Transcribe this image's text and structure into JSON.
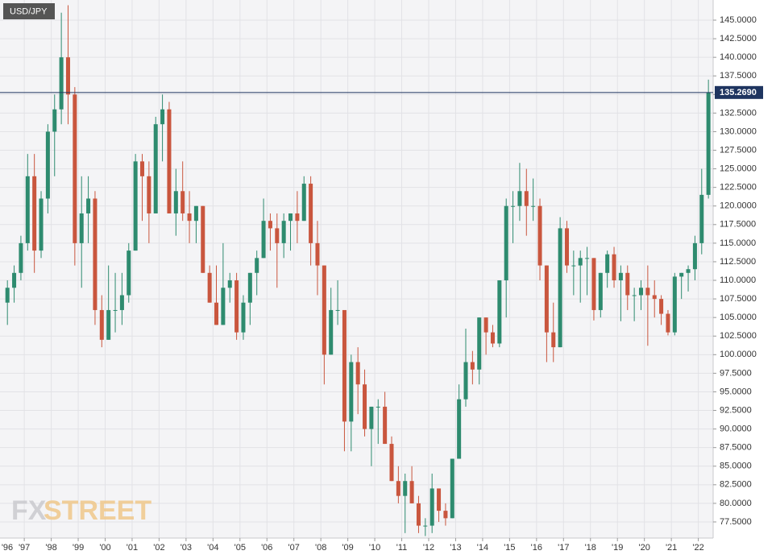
{
  "chart_data": {
    "type": "candlestick",
    "title": "USD/JPY",
    "watermark": {
      "prefix": "FX",
      "suffix": "STREET"
    },
    "up_color": "#2e8b6f",
    "down_color": "#c9563e",
    "grid": true,
    "x": [
      1996.375,
      1996.625,
      1996.875,
      1997.125,
      1997.375,
      1997.625,
      1997.875,
      1998.125,
      1998.375,
      1998.625,
      1998.875,
      1999.125,
      1999.375,
      1999.625,
      1999.875,
      2000.125,
      2000.375,
      2000.625,
      2000.875,
      2001.125,
      2001.375,
      2001.625,
      2001.875,
      2002.125,
      2002.375,
      2002.625,
      2002.875,
      2003.125,
      2003.375,
      2003.625,
      2003.875,
      2004.125,
      2004.375,
      2004.625,
      2004.875,
      2005.125,
      2005.375,
      2005.625,
      2005.875,
      2006.125,
      2006.375,
      2006.625,
      2006.875,
      2007.125,
      2007.375,
      2007.625,
      2007.875,
      2008.125,
      2008.375,
      2008.625,
      2008.875,
      2009.125,
      2009.375,
      2009.625,
      2009.875,
      2010.125,
      2010.375,
      2010.625,
      2010.875,
      2011.125,
      2011.375,
      2011.625,
      2011.875,
      2012.125,
      2012.375,
      2012.625,
      2012.875,
      2013.125,
      2013.375,
      2013.625,
      2013.875,
      2014.125,
      2014.375,
      2014.625,
      2014.875,
      2015.125,
      2015.375,
      2015.625,
      2015.875,
      2016.125,
      2016.375,
      2016.625,
      2016.875,
      2017.125,
      2017.375,
      2017.625,
      2017.875,
      2018.125,
      2018.375,
      2018.625,
      2018.875,
      2019.125,
      2019.375,
      2019.625,
      2019.875,
      2020.125,
      2020.375,
      2020.625,
      2020.875,
      2021.125,
      2021.375,
      2021.625,
      2021.875,
      2022.125,
      2022.375
    ],
    "open": [
      107,
      109,
      111,
      115,
      124,
      114,
      121,
      130,
      133,
      140,
      135,
      115,
      119,
      121,
      106,
      102,
      106,
      106,
      108,
      114,
      126,
      124,
      119,
      131,
      133,
      119,
      122,
      119,
      118,
      120,
      111,
      107,
      104,
      109,
      110,
      103,
      107,
      111,
      113,
      118,
      117,
      115,
      118,
      119,
      118,
      123,
      115,
      112,
      100,
      106,
      106,
      91,
      99,
      96,
      90,
      93,
      93,
      88,
      83,
      81,
      83,
      80,
      77,
      77,
      82,
      79,
      78,
      86,
      94,
      99,
      98,
      105,
      103,
      101.5,
      110,
      120,
      120,
      122,
      120,
      120,
      112,
      103,
      101,
      117,
      112,
      112,
      113,
      113,
      106,
      111,
      113.5,
      110,
      111,
      108,
      108,
      109,
      108,
      107.5,
      105.5,
      103,
      110.5,
      111,
      111.5,
      115,
      121.5
    ],
    "high": [
      110,
      112,
      116,
      127,
      127,
      122,
      131,
      135,
      146,
      147,
      136,
      124,
      124,
      122,
      108,
      112,
      111,
      111,
      115,
      127,
      127,
      126,
      132,
      135,
      134,
      125,
      126,
      122,
      120,
      120,
      112,
      112,
      115,
      111,
      111,
      108,
      111,
      114,
      121,
      119,
      119,
      119,
      119,
      122,
      124,
      124,
      118,
      112,
      109,
      110,
      106,
      100,
      101,
      98,
      93,
      94,
      95,
      89,
      85,
      84,
      85,
      81,
      78,
      84,
      82,
      80,
      86,
      96,
      103.5,
      100.5,
      105,
      105,
      104,
      110,
      121,
      122,
      125.8,
      125,
      123.7,
      121,
      112,
      107,
      118.5,
      118,
      114,
      114,
      114.5,
      113,
      111,
      114,
      114.5,
      112,
      112,
      109,
      110,
      112,
      110,
      108,
      106,
      111,
      111,
      112,
      116,
      125,
      137
    ],
    "low": [
      104,
      107,
      110,
      114,
      111,
      113,
      119,
      124,
      131,
      131,
      112,
      109,
      115,
      104,
      101,
      102,
      103,
      104,
      107,
      114,
      118,
      115,
      119,
      126,
      119,
      116,
      118,
      115,
      115,
      111,
      107,
      104,
      104,
      107,
      102,
      102,
      104,
      108,
      113,
      114,
      109,
      113,
      114,
      115,
      118,
      112,
      108,
      96,
      100,
      104,
      87,
      87,
      92,
      89,
      85,
      88,
      88,
      83,
      80,
      76,
      80,
      76,
      75.6,
      76,
      77.5,
      77,
      78,
      86,
      93,
      96,
      96,
      100,
      101,
      101,
      105,
      115,
      118,
      116,
      118,
      110,
      99,
      99,
      101,
      111,
      108,
      107,
      108,
      104.6,
      105,
      109,
      109,
      104.5,
      106,
      104.5,
      106,
      101.2,
      105,
      104,
      102.6,
      102.6,
      107.5,
      108.5,
      110,
      113.5,
      121
    ],
    "close": [
      109,
      111,
      115,
      124,
      114,
      121,
      130,
      133,
      140,
      135,
      115,
      119,
      121,
      106,
      102,
      106,
      106,
      108,
      114,
      126,
      124,
      119,
      131,
      133,
      119,
      122,
      119,
      118,
      120,
      111,
      107,
      104,
      109,
      110,
      103,
      107,
      111,
      113,
      118,
      117,
      115,
      118,
      119,
      118,
      123,
      115,
      112,
      100,
      106,
      106,
      91,
      99,
      96,
      90,
      93,
      93,
      88,
      83,
      81,
      83,
      80,
      77,
      77,
      82,
      79,
      78,
      86,
      94,
      99,
      98,
      105,
      103,
      101.5,
      110,
      120,
      120,
      122,
      120,
      120,
      112,
      103,
      101,
      117,
      112,
      112,
      113,
      113,
      106,
      111,
      113.5,
      110,
      111,
      108,
      108,
      109,
      108,
      107.5,
      105.5,
      103,
      110.5,
      111,
      111.5,
      115,
      121.5,
      135.27
    ],
    "last_price": {
      "value": 135.269,
      "label": "135.2690"
    },
    "xlim": [
      1996.1,
      2022.55
    ],
    "xticks": [
      {
        "value": 1996,
        "label": "'96"
      },
      {
        "value": 1997,
        "label": "'97"
      },
      {
        "value": 1998,
        "label": "'98"
      },
      {
        "value": 1999,
        "label": "'99"
      },
      {
        "value": 2000,
        "label": "'00"
      },
      {
        "value": 2001,
        "label": "'01"
      },
      {
        "value": 2002,
        "label": "'02"
      },
      {
        "value": 2003,
        "label": "'03"
      },
      {
        "value": 2004,
        "label": "'04"
      },
      {
        "value": 2005,
        "label": "'05"
      },
      {
        "value": 2006,
        "label": "'06"
      },
      {
        "value": 2007,
        "label": "'07"
      },
      {
        "value": 2008,
        "label": "'08"
      },
      {
        "value": 2009,
        "label": "'09"
      },
      {
        "value": 2010,
        "label": "'10"
      },
      {
        "value": 2011,
        "label": "'11"
      },
      {
        "value": 2012,
        "label": "'12"
      },
      {
        "value": 2013,
        "label": "'13"
      },
      {
        "value": 2014,
        "label": "'14"
      },
      {
        "value": 2015,
        "label": "'15"
      },
      {
        "value": 2016,
        "label": "'16"
      },
      {
        "value": 2017,
        "label": "'17"
      },
      {
        "value": 2018,
        "label": "'18"
      },
      {
        "value": 2019,
        "label": "'19"
      },
      {
        "value": 2020,
        "label": "'20"
      },
      {
        "value": 2021,
        "label": "'21"
      },
      {
        "value": 2022,
        "label": "'22"
      }
    ],
    "ylim": [
      75.33,
      147.71
    ],
    "yticks": [
      {
        "value": 77.5,
        "label": "77.5000"
      },
      {
        "value": 80,
        "label": "80.0000"
      },
      {
        "value": 82.5,
        "label": "82.5000"
      },
      {
        "value": 85,
        "label": "85.0000"
      },
      {
        "value": 87.5,
        "label": "87.5000"
      },
      {
        "value": 90,
        "label": "90.0000"
      },
      {
        "value": 92.5,
        "label": "92.5000"
      },
      {
        "value": 95,
        "label": "95.0000"
      },
      {
        "value": 97.5,
        "label": "97.5000"
      },
      {
        "value": 100,
        "label": "100.0000"
      },
      {
        "value": 102.5,
        "label": "102.5000"
      },
      {
        "value": 105,
        "label": "105.0000"
      },
      {
        "value": 107.5,
        "label": "107.5000"
      },
      {
        "value": 110,
        "label": "110.0000"
      },
      {
        "value": 112.5,
        "label": "112.5000"
      },
      {
        "value": 115,
        "label": "115.0000"
      },
      {
        "value": 117.5,
        "label": "117.5000"
      },
      {
        "value": 120,
        "label": "120.0000"
      },
      {
        "value": 122.5,
        "label": "122.5000"
      },
      {
        "value": 125,
        "label": "125.0000"
      },
      {
        "value": 127.5,
        "label": "127.5000"
      },
      {
        "value": 130,
        "label": "130.0000"
      },
      {
        "value": 132.5,
        "label": "132.5000"
      },
      {
        "value": 135,
        "label": "135.0000"
      },
      {
        "value": 137.5,
        "label": "137.5000"
      },
      {
        "value": 140,
        "label": "140.0000"
      },
      {
        "value": 142.5,
        "label": "142.5000"
      },
      {
        "value": 145,
        "label": "145.0000"
      }
    ]
  }
}
